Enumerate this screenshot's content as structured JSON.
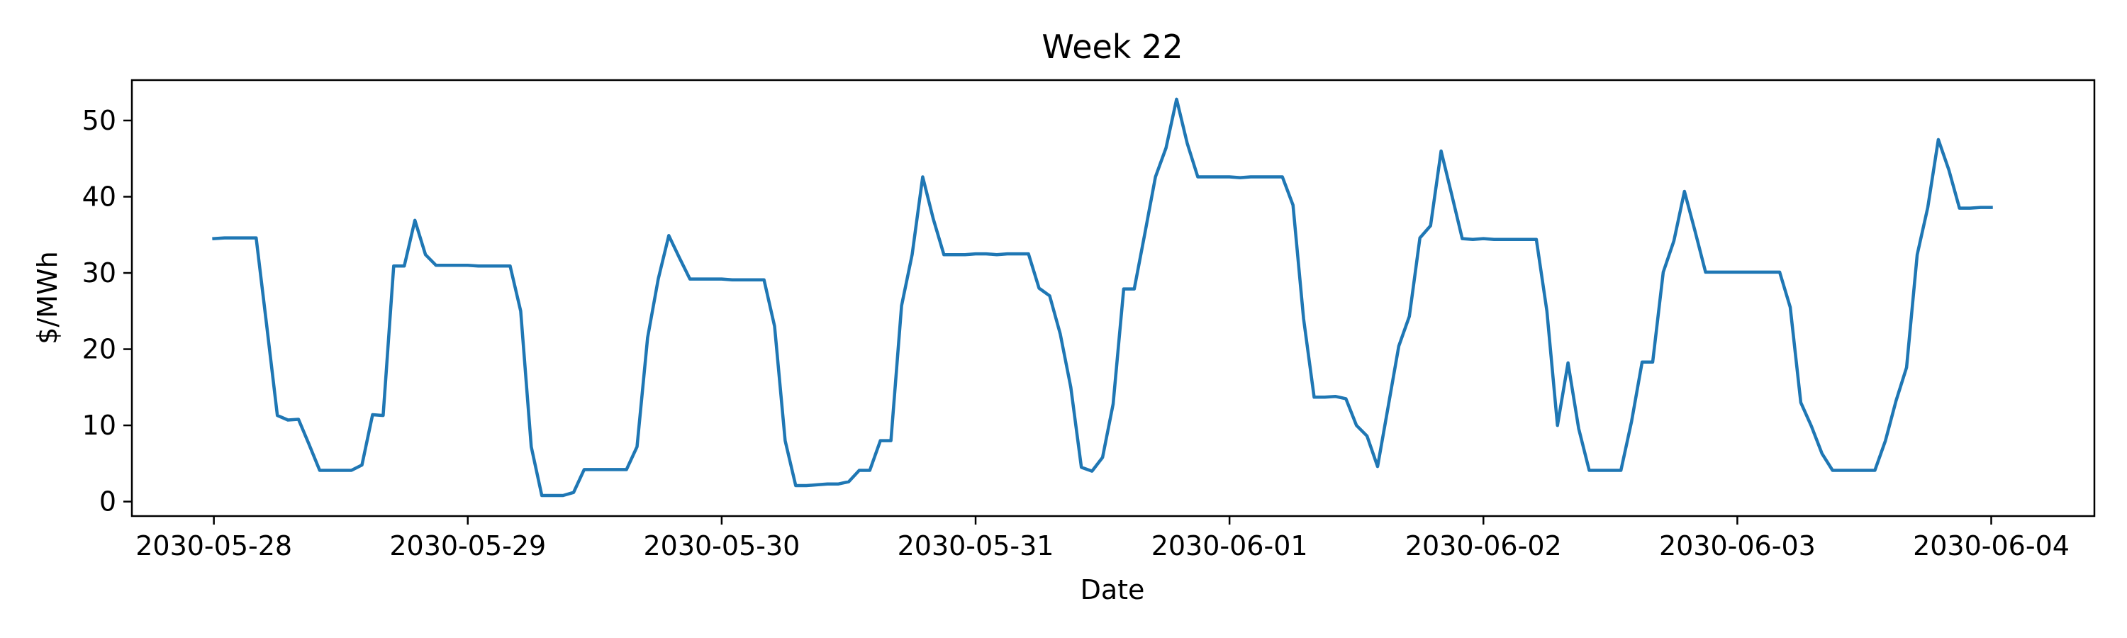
{
  "chart_data": {
    "type": "line",
    "title": "Week 22",
    "xlabel": "Date",
    "ylabel": "$/MWh",
    "x_ticks": [
      "2030-05-28",
      "2030-05-29",
      "2030-05-30",
      "2030-05-31",
      "2030-06-01",
      "2030-06-02",
      "2030-06-03",
      "2030-06-04"
    ],
    "y_ticks": [
      0,
      10,
      20,
      30,
      40,
      50
    ],
    "xlim": [
      "2030-05-27 16:15",
      "2030-06-04 09:45"
    ],
    "ylim": [
      -1.9,
      55.3
    ],
    "grid": false,
    "colors": {
      "line": "#1f77b4",
      "axes": "#000000",
      "background": "#ffffff"
    },
    "series": [
      {
        "x": [
          "2030-05-28 00:00",
          "2030-05-28 01:00",
          "2030-05-28 02:00",
          "2030-05-28 03:00",
          "2030-05-28 04:00",
          "2030-05-28 05:00",
          "2030-05-28 06:00",
          "2030-05-28 07:00",
          "2030-05-28 08:00",
          "2030-05-28 09:00",
          "2030-05-28 10:00",
          "2030-05-28 11:00",
          "2030-05-28 12:00",
          "2030-05-28 13:00",
          "2030-05-28 14:00",
          "2030-05-28 15:00",
          "2030-05-28 16:00",
          "2030-05-28 17:00",
          "2030-05-28 18:00",
          "2030-05-28 19:00",
          "2030-05-28 20:00",
          "2030-05-28 21:00",
          "2030-05-28 22:00",
          "2030-05-28 23:00",
          "2030-05-29 00:00",
          "2030-05-29 01:00",
          "2030-05-29 02:00",
          "2030-05-29 03:00",
          "2030-05-29 04:00",
          "2030-05-29 05:00",
          "2030-05-29 06:00",
          "2030-05-29 07:00",
          "2030-05-29 08:00",
          "2030-05-29 09:00",
          "2030-05-29 10:00",
          "2030-05-29 11:00",
          "2030-05-29 12:00",
          "2030-05-29 13:00",
          "2030-05-29 14:00",
          "2030-05-29 15:00",
          "2030-05-29 16:00",
          "2030-05-29 17:00",
          "2030-05-29 18:00",
          "2030-05-29 19:00",
          "2030-05-29 20:00",
          "2030-05-29 21:00",
          "2030-05-29 22:00",
          "2030-05-29 23:00",
          "2030-05-30 00:00",
          "2030-05-30 01:00",
          "2030-05-30 02:00",
          "2030-05-30 03:00",
          "2030-05-30 04:00",
          "2030-05-30 05:00",
          "2030-05-30 06:00",
          "2030-05-30 07:00",
          "2030-05-30 08:00",
          "2030-05-30 09:00",
          "2030-05-30 10:00",
          "2030-05-30 11:00",
          "2030-05-30 12:00",
          "2030-05-30 13:00",
          "2030-05-30 14:00",
          "2030-05-30 15:00",
          "2030-05-30 16:00",
          "2030-05-30 17:00",
          "2030-05-30 18:00",
          "2030-05-30 19:00",
          "2030-05-30 20:00",
          "2030-05-30 21:00",
          "2030-05-30 22:00",
          "2030-05-30 23:00",
          "2030-05-31 00:00",
          "2030-05-31 01:00",
          "2030-05-31 02:00",
          "2030-05-31 03:00",
          "2030-05-31 04:00",
          "2030-05-31 05:00",
          "2030-05-31 06:00",
          "2030-05-31 07:00",
          "2030-05-31 08:00",
          "2030-05-31 09:00",
          "2030-05-31 10:00",
          "2030-05-31 11:00",
          "2030-05-31 12:00",
          "2030-05-31 13:00",
          "2030-05-31 14:00",
          "2030-05-31 15:00",
          "2030-05-31 16:00",
          "2030-05-31 17:00",
          "2030-05-31 18:00",
          "2030-05-31 19:00",
          "2030-05-31 20:00",
          "2030-05-31 21:00",
          "2030-05-31 22:00",
          "2030-05-31 23:00",
          "2030-06-01 00:00",
          "2030-06-01 01:00",
          "2030-06-01 02:00",
          "2030-06-01 03:00",
          "2030-06-01 04:00",
          "2030-06-01 05:00",
          "2030-06-01 06:00",
          "2030-06-01 07:00",
          "2030-06-01 08:00",
          "2030-06-01 09:00",
          "2030-06-01 10:00",
          "2030-06-01 11:00",
          "2030-06-01 12:00",
          "2030-06-01 13:00",
          "2030-06-01 14:00",
          "2030-06-01 15:00",
          "2030-06-01 16:00",
          "2030-06-01 17:00",
          "2030-06-01 18:00",
          "2030-06-01 19:00",
          "2030-06-01 20:00",
          "2030-06-01 21:00",
          "2030-06-01 22:00",
          "2030-06-01 23:00",
          "2030-06-02 00:00",
          "2030-06-02 01:00",
          "2030-06-02 02:00",
          "2030-06-02 03:00",
          "2030-06-02 04:00",
          "2030-06-02 05:00",
          "2030-06-02 06:00",
          "2030-06-02 07:00",
          "2030-06-02 08:00",
          "2030-06-02 09:00",
          "2030-06-02 10:00",
          "2030-06-02 11:00",
          "2030-06-02 12:00",
          "2030-06-02 13:00",
          "2030-06-02 14:00",
          "2030-06-02 15:00",
          "2030-06-02 16:00",
          "2030-06-02 17:00",
          "2030-06-02 18:00",
          "2030-06-02 19:00",
          "2030-06-02 20:00",
          "2030-06-02 21:00",
          "2030-06-02 22:00",
          "2030-06-02 23:00",
          "2030-06-03 00:00",
          "2030-06-03 01:00",
          "2030-06-03 02:00",
          "2030-06-03 03:00",
          "2030-06-03 04:00",
          "2030-06-03 05:00",
          "2030-06-03 06:00",
          "2030-06-03 07:00",
          "2030-06-03 08:00",
          "2030-06-03 09:00",
          "2030-06-03 10:00",
          "2030-06-03 11:00",
          "2030-06-03 12:00",
          "2030-06-03 13:00",
          "2030-06-03 14:00",
          "2030-06-03 15:00",
          "2030-06-03 16:00",
          "2030-06-03 17:00",
          "2030-06-03 18:00",
          "2030-06-03 19:00",
          "2030-06-03 20:00",
          "2030-06-03 21:00",
          "2030-06-03 22:00",
          "2030-06-03 23:00",
          "2030-06-04 00:00"
        ],
        "values": [
          34.5,
          34.6,
          34.6,
          34.6,
          34.6,
          23.0,
          11.3,
          10.7,
          10.8,
          7.5,
          4.1,
          4.1,
          4.1,
          4.1,
          4.8,
          11.4,
          11.3,
          30.9,
          30.9,
          36.9,
          32.4,
          31.0,
          31.0,
          31.0,
          31.0,
          30.9,
          30.9,
          30.9,
          30.9,
          25.0,
          7.2,
          0.8,
          0.8,
          0.8,
          1.2,
          4.2,
          4.2,
          4.2,
          4.2,
          4.2,
          7.2,
          21.5,
          29.2,
          34.9,
          32.0,
          29.2,
          29.2,
          29.2,
          29.2,
          29.1,
          29.1,
          29.1,
          29.1,
          23.0,
          8.0,
          2.1,
          2.1,
          2.2,
          2.3,
          2.3,
          2.6,
          4.1,
          4.1,
          8.0,
          8.0,
          25.7,
          32.4,
          42.6,
          37.1,
          32.4,
          32.4,
          32.4,
          32.5,
          32.5,
          32.4,
          32.5,
          32.5,
          32.5,
          28.0,
          27.0,
          22.0,
          15.0,
          4.5,
          4.0,
          5.8,
          12.8,
          27.9,
          27.9,
          35.2,
          42.6,
          46.4,
          52.8,
          47.0,
          42.6,
          42.6,
          42.6,
          42.6,
          42.5,
          42.6,
          42.6,
          42.6,
          42.6,
          38.9,
          24.0,
          13.7,
          13.7,
          13.8,
          13.5,
          10.0,
          8.6,
          4.6,
          12.5,
          20.4,
          24.3,
          34.6,
          36.2,
          46.0,
          40.3,
          34.5,
          34.4,
          34.5,
          34.4,
          34.4,
          34.4,
          34.4,
          34.4,
          25.0,
          10.0,
          18.2,
          9.6,
          4.1,
          4.1,
          4.1,
          4.1,
          10.5,
          18.3,
          18.3,
          30.1,
          34.2,
          40.7,
          35.5,
          30.1,
          30.1,
          30.1,
          30.1,
          30.1,
          30.1,
          30.1,
          30.1,
          25.5,
          13.0,
          9.9,
          6.3,
          4.1,
          4.1,
          4.1,
          4.1,
          4.1,
          8.0,
          13.2,
          17.6,
          32.4,
          38.6,
          47.5,
          43.5,
          38.5,
          38.5,
          38.6,
          38.6
        ]
      }
    ]
  }
}
